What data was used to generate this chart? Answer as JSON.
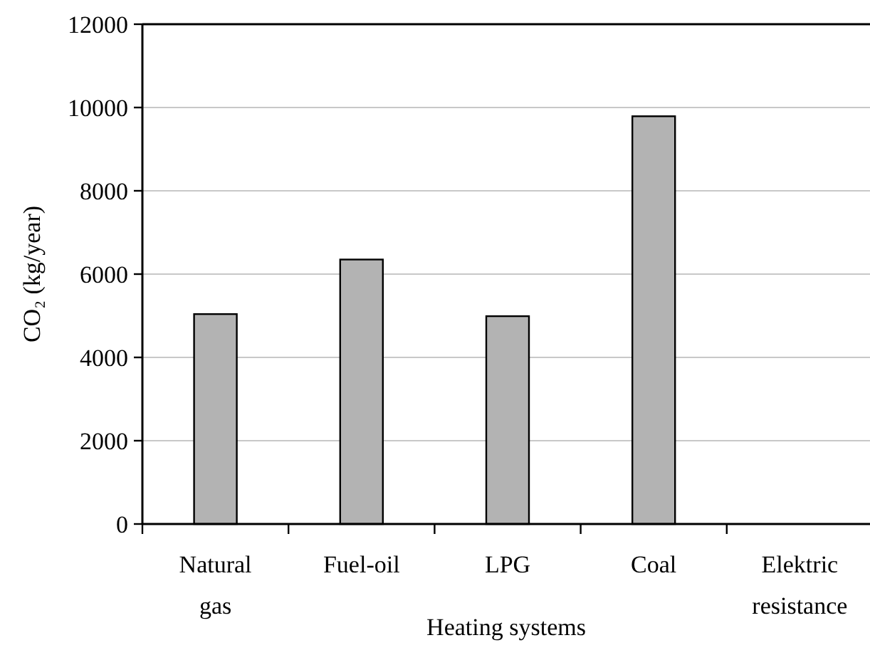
{
  "chart_data": {
    "type": "bar",
    "xlabel": "Heating systems",
    "ylabel": "CO₂ (kg/year)",
    "categories": [
      "Natural gas",
      "Fuel-oil",
      "LPG",
      "Coal",
      "Elektric resistance"
    ],
    "values": [
      5040,
      6350,
      4990,
      9790,
      0
    ],
    "color": "#b3b3b3",
    "ylim": [
      0,
      12000
    ],
    "yticks": [
      0,
      2000,
      4000,
      6000,
      8000,
      10000,
      12000
    ],
    "grid": "y"
  }
}
